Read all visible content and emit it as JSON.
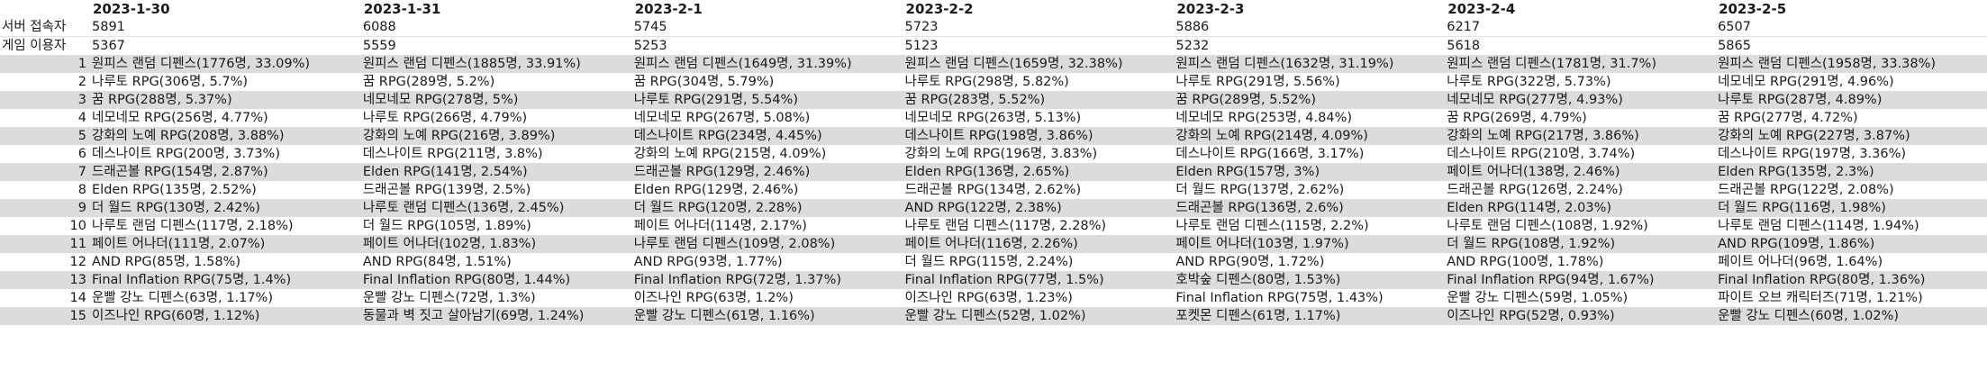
{
  "header": {
    "dates": [
      "2023-1-30",
      "2023-1-31",
      "2023-2-1",
      "2023-2-2",
      "2023-2-3",
      "2023-2-4",
      "2023-2-5"
    ]
  },
  "summary": {
    "server_label": "서버 접속자",
    "server_values": [
      "5891",
      "6088",
      "5745",
      "5723",
      "5886",
      "6217",
      "6507"
    ],
    "players_label": "게임 이용자",
    "players_values": [
      "5367",
      "5559",
      "5253",
      "5123",
      "5232",
      "5618",
      "5865"
    ]
  },
  "rankings": [
    {
      "rank": "1",
      "cells": [
        "원피스 랜덤 디펜스(1776명, 33.09%)",
        "원피스 랜덤 디펜스(1885명, 33.91%)",
        "원피스 랜덤 디펜스(1649명, 31.39%)",
        "원피스 랜덤 디펜스(1659명, 32.38%)",
        "원피스 랜덤 디펜스(1632명, 31.19%)",
        "원피스 랜덤 디펜스(1781명, 31.7%)",
        "원피스 랜덤 디펜스(1958명, 33.38%)"
      ]
    },
    {
      "rank": "2",
      "cells": [
        "나루토 RPG(306명, 5.7%)",
        "꿈 RPG(289명, 5.2%)",
        "꿈 RPG(304명, 5.79%)",
        "나루토 RPG(298명, 5.82%)",
        "나루토 RPG(291명, 5.56%)",
        "나루토 RPG(322명, 5.73%)",
        "네모네모 RPG(291명, 4.96%)"
      ]
    },
    {
      "rank": "3",
      "cells": [
        "꿈 RPG(288명, 5.37%)",
        "네모네모 RPG(278명, 5%)",
        "나루토 RPG(291명, 5.54%)",
        "꿈 RPG(283명, 5.52%)",
        "꿈 RPG(289명, 5.52%)",
        "네모네모 RPG(277명, 4.93%)",
        "나루토 RPG(287명, 4.89%)"
      ]
    },
    {
      "rank": "4",
      "cells": [
        "네모네모 RPG(256명, 4.77%)",
        "나루토 RPG(266명, 4.79%)",
        "네모네모 RPG(267명, 5.08%)",
        "네모네모 RPG(263명, 5.13%)",
        "네모네모 RPG(253명, 4.84%)",
        "꿈 RPG(269명, 4.79%)",
        "꿈 RPG(277명, 4.72%)"
      ]
    },
    {
      "rank": "5",
      "cells": [
        "강화의 노예 RPG(208명, 3.88%)",
        "강화의 노예 RPG(216명, 3.89%)",
        "데스나이트 RPG(234명, 4.45%)",
        "데스나이트 RPG(198명, 3.86%)",
        "강화의 노예 RPG(214명, 4.09%)",
        "강화의 노예 RPG(217명, 3.86%)",
        "강화의 노예 RPG(227명, 3.87%)"
      ]
    },
    {
      "rank": "6",
      "cells": [
        "데스나이트 RPG(200명, 3.73%)",
        "데스나이트 RPG(211명, 3.8%)",
        "강화의 노예 RPG(215명, 4.09%)",
        "강화의 노예 RPG(196명, 3.83%)",
        "데스나이트 RPG(166명, 3.17%)",
        "데스나이트 RPG(210명, 3.74%)",
        "데스나이트 RPG(197명, 3.36%)"
      ]
    },
    {
      "rank": "7",
      "cells": [
        "드래곤볼 RPG(154명, 2.87%)",
        "Elden RPG(141명, 2.54%)",
        "드래곤볼 RPG(129명, 2.46%)",
        "Elden RPG(136명, 2.65%)",
        "Elden RPG(157명, 3%)",
        "페이트 어나더(138명, 2.46%)",
        "Elden RPG(135명, 2.3%)"
      ]
    },
    {
      "rank": "8",
      "cells": [
        "Elden RPG(135명, 2.52%)",
        "드래곤볼 RPG(139명, 2.5%)",
        "Elden RPG(129명, 2.46%)",
        "드래곤볼 RPG(134명, 2.62%)",
        "더 월드 RPG(137명, 2.62%)",
        "드래곤볼 RPG(126명, 2.24%)",
        "드래곤볼 RPG(122명, 2.08%)"
      ]
    },
    {
      "rank": "9",
      "cells": [
        "더 월드 RPG(130명, 2.42%)",
        "나루토 랜덤 디펜스(136명, 2.45%)",
        "더 월드 RPG(120명, 2.28%)",
        "AND RPG(122명, 2.38%)",
        "드래곤볼 RPG(136명, 2.6%)",
        "Elden RPG(114명, 2.03%)",
        "더 월드 RPG(116명, 1.98%)"
      ]
    },
    {
      "rank": "10",
      "cells": [
        "나루토 랜덤 디펜스(117명, 2.18%)",
        "더 월드 RPG(105명, 1.89%)",
        "페이트 어나더(114명, 2.17%)",
        "나루토 랜덤 디펜스(117명, 2.28%)",
        "나루토 랜덤 디펜스(115명, 2.2%)",
        "나루토 랜덤 디펜스(108명, 1.92%)",
        "나루토 랜덤 디펜스(114명, 1.94%)"
      ]
    },
    {
      "rank": "11",
      "cells": [
        "페이트 어나더(111명, 2.07%)",
        "페이트 어나더(102명, 1.83%)",
        "나루토 랜덤 디펜스(109명, 2.08%)",
        "페이트 어나더(116명, 2.26%)",
        "페이트 어나더(103명, 1.97%)",
        "더 월드 RPG(108명, 1.92%)",
        "AND RPG(109명, 1.86%)"
      ]
    },
    {
      "rank": "12",
      "cells": [
        "AND RPG(85명, 1.58%)",
        "AND RPG(84명, 1.51%)",
        "AND RPG(93명, 1.77%)",
        "더 월드 RPG(115명, 2.24%)",
        "AND RPG(90명, 1.72%)",
        "AND RPG(100명, 1.78%)",
        "페이트 어나더(96명, 1.64%)"
      ]
    },
    {
      "rank": "13",
      "cells": [
        "Final Inflation RPG(75명, 1.4%)",
        "Final Inflation RPG(80명, 1.44%)",
        "Final Inflation RPG(72명, 1.37%)",
        "Final Inflation RPG(77명, 1.5%)",
        "호박숲 디펜스(80명, 1.53%)",
        "Final Inflation RPG(94명, 1.67%)",
        "Final Inflation RPG(80명, 1.36%)"
      ]
    },
    {
      "rank": "14",
      "cells": [
        "운빨 강노 디펜스(63명, 1.17%)",
        "운빨 강노 디펜스(72명, 1.3%)",
        "이즈나인 RPG(63명, 1.2%)",
        "이즈나인 RPG(63명, 1.23%)",
        "Final Inflation RPG(75명, 1.43%)",
        "운빨 강노 디펜스(59명, 1.05%)",
        "파이트 오브 캐릭터즈(71명, 1.21%)"
      ]
    },
    {
      "rank": "15",
      "cells": [
        "이즈나인 RPG(60명, 1.12%)",
        "동물과 벽 짓고 살아남기(69명, 1.24%)",
        "운빨 강노 디펜스(61명, 1.16%)",
        "운빨 강노 디펜스(52명, 1.02%)",
        "포켓몬 디펜스(61명, 1.17%)",
        "이즈나인 RPG(52명, 0.93%)",
        "운빨 강노 디펜스(60명, 1.02%)"
      ]
    }
  ]
}
